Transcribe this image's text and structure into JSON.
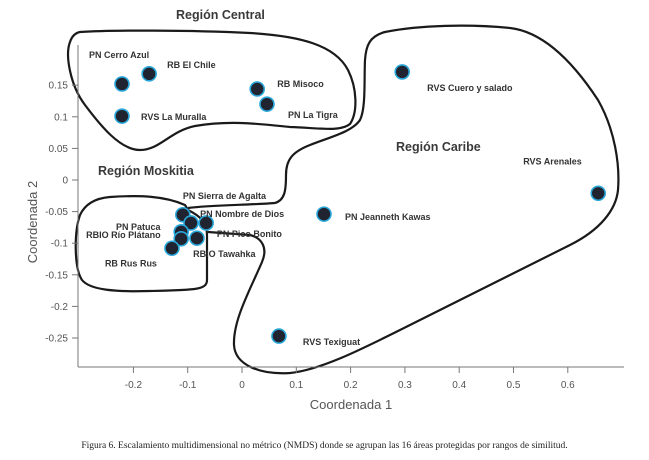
{
  "chart_data": {
    "type": "scatter",
    "title": "",
    "xlabel": "Coordenada 1",
    "ylabel": "Coordenada 2",
    "xlim": [
      -0.3,
      0.69
    ],
    "ylim": [
      -0.29,
      0.19
    ],
    "x_ticks": [
      -0.2,
      -0.1,
      0,
      0.1,
      0.2,
      0.3,
      0.4,
      0.5,
      0.6
    ],
    "x_tick_labels": [
      "-0.2",
      "-0.1",
      "0",
      "0.1",
      "0.2",
      "0.3",
      "0.4",
      "0.5",
      "0.6"
    ],
    "y_ticks": [
      0.15,
      0.1,
      0.05,
      0,
      -0.05,
      -0.1,
      -0.15,
      -0.2,
      -0.25
    ],
    "y_tick_labels": [
      "0.15",
      "0.1",
      "0.05",
      "0",
      "-0.05",
      "-0.1",
      "-0.15",
      "-0.2",
      "-0.25"
    ],
    "grid": false,
    "marker_fill": "#1f2430",
    "marker_edge": "#2aa7d9",
    "points": [
      {
        "name": "PN Cerro Azul",
        "x": -0.221,
        "y": 0.152,
        "region": "Región Central"
      },
      {
        "name": "RB El Chile",
        "x": -0.171,
        "y": 0.168,
        "region": "Región Central"
      },
      {
        "name": "RVS La Muralla",
        "x": -0.221,
        "y": 0.101,
        "region": "Región Central"
      },
      {
        "name": "RB Misoco",
        "x": 0.028,
        "y": 0.144,
        "region": "Región Central"
      },
      {
        "name": "PN La Tigra",
        "x": 0.046,
        "y": 0.12,
        "region": "Región Central"
      },
      {
        "name": "RVS Cuero y salado",
        "x": 0.295,
        "y": 0.171,
        "region": "Región Caribe"
      },
      {
        "name": "RVS Arenales",
        "x": 0.656,
        "y": -0.021,
        "region": "Región Caribe"
      },
      {
        "name": "PN Jeanneth Kawas",
        "x": 0.151,
        "y": -0.054,
        "region": "Región Caribe"
      },
      {
        "name": "RVS Texiguat",
        "x": 0.068,
        "y": -0.247,
        "region": "Región Caribe"
      },
      {
        "name": "PN Sierra de Agalta",
        "x": -0.109,
        "y": -0.055,
        "region": "Región Moskitia"
      },
      {
        "name": "PN Nombre de Dios",
        "x": -0.066,
        "y": -0.068,
        "region": "Región Moskitia"
      },
      {
        "name": "PN Patuca",
        "x": -0.094,
        "y": -0.068,
        "region": "Región Moskitia"
      },
      {
        "name": "RBIO Río Plátano",
        "x": -0.112,
        "y": -0.082,
        "region": "Región Moskitia"
      },
      {
        "name": "PN Pico Bonito",
        "x": -0.083,
        "y": -0.092,
        "region": "Región Moskitia"
      },
      {
        "name": "RBIO Tawahka",
        "x": -0.112,
        "y": -0.093,
        "region": "Región Moskitia"
      },
      {
        "name": "RB Rus Rus",
        "x": -0.129,
        "y": -0.108,
        "region": "Región Moskitia"
      }
    ],
    "regions": [
      "Región Central",
      "Región Moskitia",
      "Región Caribe"
    ]
  },
  "caption": "Figura 6. Escalamiento multidimensional no métrico (NMDS) donde se agrupan las 16 áreas protegidas por rangos de similitud."
}
